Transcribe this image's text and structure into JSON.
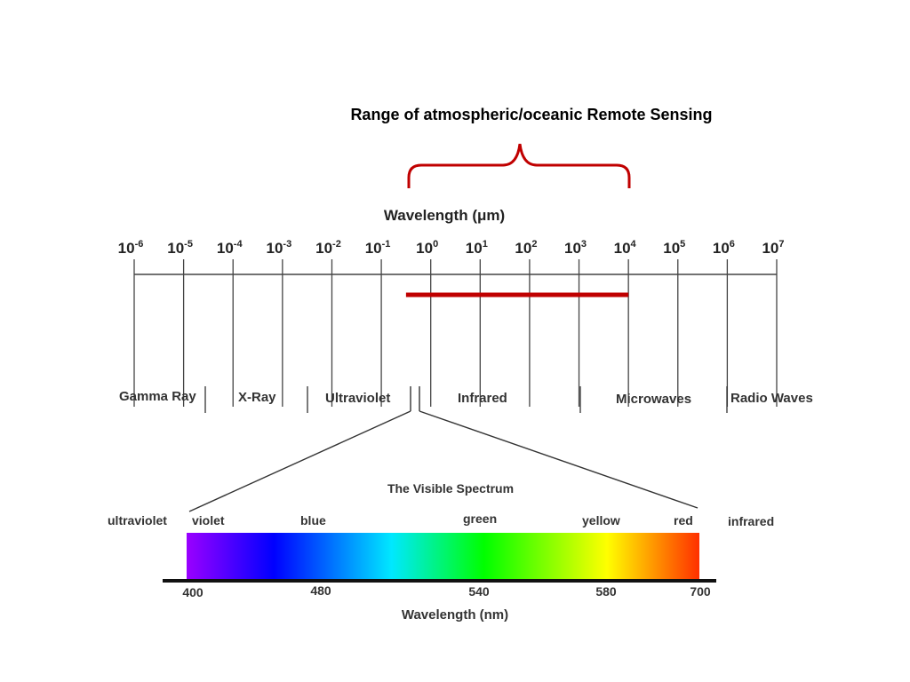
{
  "headline": "Range of atmospheric/oceanic Remote Sensing",
  "upper_axis": {
    "title": "Wavelength (μm)",
    "ticks": [
      {
        "base": "10",
        "exp": "-6"
      },
      {
        "base": "10",
        "exp": "-5"
      },
      {
        "base": "10",
        "exp": "-4"
      },
      {
        "base": "10",
        "exp": "-3"
      },
      {
        "base": "10",
        "exp": "-2"
      },
      {
        "base": "10",
        "exp": "-1"
      },
      {
        "base": "10",
        "exp": "0"
      },
      {
        "base": "10",
        "exp": "1"
      },
      {
        "base": "10",
        "exp": "2"
      },
      {
        "base": "10",
        "exp": "3"
      },
      {
        "base": "10",
        "exp": "4"
      },
      {
        "base": "10",
        "exp": "5"
      },
      {
        "base": "10",
        "exp": "6"
      },
      {
        "base": "10",
        "exp": "7"
      }
    ],
    "bands": [
      "Gamma Ray",
      "X-Ray",
      "Ultraviolet",
      "Infrared",
      "Microwaves",
      "Radio Waves"
    ]
  },
  "remote_sensing_range": {
    "from_exponent": -0.5,
    "to_exponent": 4,
    "color": "#c00000"
  },
  "visible": {
    "title": "The Visible Spectrum",
    "left_outside": "ultraviolet",
    "right_outside": "infrared",
    "colors": [
      "violet",
      "blue",
      "green",
      "yellow",
      "red"
    ],
    "axis_ticks": [
      "400",
      "480",
      "540",
      "580",
      "700"
    ],
    "axis_title": "Wavelength (nm)",
    "gradient": [
      "#9a00ff",
      "#0000ff",
      "#00e0ff",
      "#00ff00",
      "#ffff00",
      "#ff6000",
      "#ff3000"
    ]
  }
}
